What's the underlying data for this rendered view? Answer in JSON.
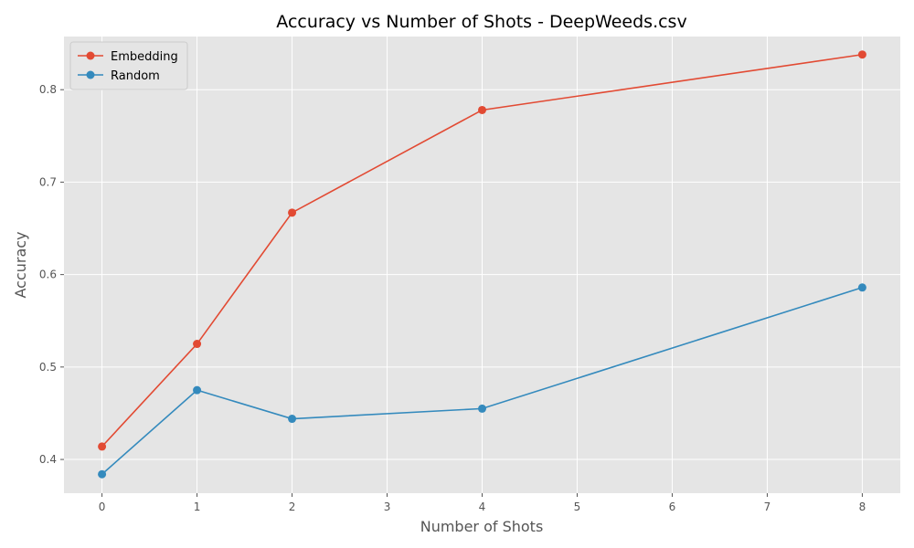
{
  "chart_data": {
    "type": "line",
    "title": "Accuracy vs Number of Shots - DeepWeeds.csv",
    "xlabel": "Number of Shots",
    "ylabel": "Accuracy",
    "xlim": [
      -0.4,
      8.4
    ],
    "ylim": [
      0.3635,
      0.8575
    ],
    "xticks": [
      0,
      1,
      2,
      3,
      4,
      5,
      6,
      7,
      8
    ],
    "yticks": [
      0.4,
      0.5,
      0.6,
      0.7,
      0.8
    ],
    "ytick_labels": [
      "0.4",
      "0.5",
      "0.6",
      "0.7",
      "0.8"
    ],
    "grid": true,
    "legend_position": "top-left",
    "background_color": "#e5e5e5",
    "grid_color": "#ffffff",
    "series": [
      {
        "name": "Embedding",
        "color": "#e24a33",
        "marker": "circle",
        "x": [
          0,
          1,
          2,
          4,
          8
        ],
        "y": [
          0.414,
          0.525,
          0.667,
          0.778,
          0.838
        ]
      },
      {
        "name": "Random",
        "color": "#348abd",
        "marker": "circle",
        "x": [
          0,
          1,
          2,
          4,
          8
        ],
        "y": [
          0.384,
          0.475,
          0.444,
          0.455,
          0.586
        ]
      }
    ]
  }
}
